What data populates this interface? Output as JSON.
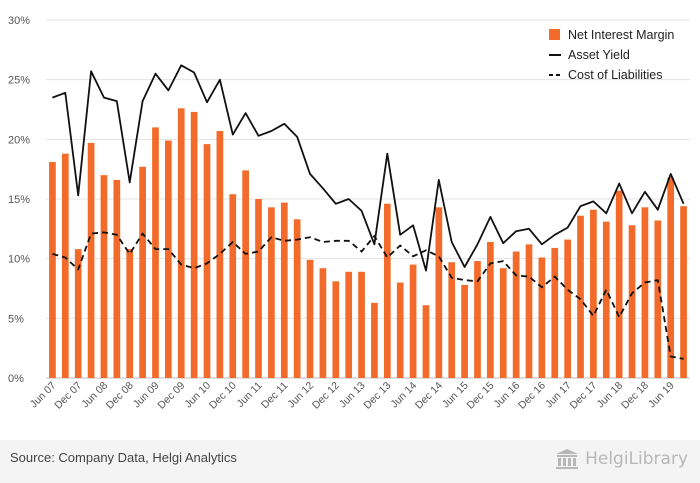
{
  "footer": {
    "source": "Source: Company Data, Helgi Analytics",
    "brand": "HelgiLibrary",
    "brand_icon": "library-columns-icon"
  },
  "colors": {
    "bar": "#f26b2a",
    "line": "#111111",
    "grid": "#e3e3e3"
  },
  "chart_data": {
    "type": "bar",
    "title": "",
    "xlabel": "",
    "ylabel": "",
    "ylim": [
      0,
      30
    ],
    "yticks": [
      "0%",
      "5%",
      "10%",
      "15%",
      "20%",
      "25%",
      "30%"
    ],
    "grid": true,
    "legend_position": "top-right",
    "categories": [
      "Jun 07",
      "Sep 07",
      "Dec 07",
      "Mar 08",
      "Jun 08",
      "Sep 08",
      "Dec 08",
      "Mar 09",
      "Jun 09",
      "Sep 09",
      "Dec 09",
      "Mar 10",
      "Jun 10",
      "Sep 10",
      "Dec 10",
      "Mar 11",
      "Jun 11",
      "Sep 11",
      "Dec 11",
      "Mar 12",
      "Jun 12",
      "Sep 12",
      "Dec 12",
      "Mar 13",
      "Jun 13",
      "Sep 13",
      "Dec 13",
      "Mar 14",
      "Jun 14",
      "Sep 14",
      "Dec 14",
      "Mar 15",
      "Jun 15",
      "Sep 15",
      "Dec 15",
      "Mar 16",
      "Jun 16",
      "Sep 16",
      "Dec 16",
      "Mar 17",
      "Jun 17",
      "Sep 17",
      "Dec 17",
      "Mar 18",
      "Jun 18",
      "Sep 18",
      "Dec 18",
      "Mar 19",
      "Jun 19",
      "Sep 19"
    ],
    "x_tick_labels": [
      "Jun 07",
      "Dec 07",
      "Jun 08",
      "Dec 08",
      "Jun 09",
      "Dec 09",
      "Jun 10",
      "Dec 10",
      "Jun 11",
      "Dec 11",
      "Jun 12",
      "Dec 12",
      "Jun 13",
      "Dec 13",
      "Jun 14",
      "Dec 14",
      "Jun 15",
      "Dec 15",
      "Jun 16",
      "Dec 16",
      "Jun 17",
      "Dec 17",
      "Jun 18",
      "Dec 18",
      "Jun 19"
    ],
    "series": [
      {
        "name": "Net Interest Margin",
        "type": "bar",
        "values": [
          18.1,
          18.8,
          10.8,
          19.7,
          17.0,
          16.6,
          10.8,
          17.7,
          21.0,
          19.9,
          22.6,
          22.3,
          19.6,
          20.7,
          15.4,
          17.4,
          15.0,
          14.3,
          14.7,
          13.3,
          9.9,
          9.2,
          8.1,
          8.9,
          8.9,
          6.3,
          14.6,
          8.0,
          9.5,
          6.1,
          14.3,
          9.7,
          7.8,
          9.8,
          11.4,
          9.2,
          10.6,
          11.2,
          10.1,
          10.9,
          11.6,
          13.6,
          14.1,
          13.1,
          15.7,
          12.8,
          14.3,
          13.2,
          16.8,
          14.4
        ]
      },
      {
        "name": "Asset Yield",
        "type": "line",
        "values": [
          23.5,
          23.9,
          15.3,
          25.7,
          23.5,
          23.2,
          16.4,
          23.2,
          25.5,
          24.1,
          26.2,
          25.6,
          23.1,
          25.0,
          20.4,
          22.2,
          20.3,
          20.7,
          21.3,
          20.2,
          17.1,
          15.9,
          14.6,
          15.0,
          14.0,
          11.2,
          18.8,
          12.0,
          12.8,
          9.0,
          16.6,
          11.4,
          9.3,
          11.2,
          13.5,
          11.3,
          12.3,
          12.5,
          11.2,
          12.0,
          12.6,
          14.4,
          14.8,
          13.8,
          16.3,
          13.8,
          15.6,
          14.1,
          17.1,
          14.6
        ]
      },
      {
        "name": "Cost of Liabilities",
        "type": "line",
        "dash": "dashed",
        "values": [
          10.4,
          10.1,
          9.1,
          12.1,
          12.2,
          12.0,
          10.4,
          12.1,
          10.8,
          10.8,
          9.5,
          9.2,
          9.6,
          10.4,
          11.4,
          10.4,
          10.6,
          11.8,
          11.5,
          11.6,
          11.8,
          11.4,
          11.5,
          11.5,
          10.6,
          11.9,
          10.1,
          11.1,
          10.2,
          10.7,
          10.2,
          8.4,
          8.2,
          8.1,
          9.6,
          9.8,
          8.6,
          8.5,
          7.6,
          8.5,
          7.4,
          6.6,
          5.2,
          7.4,
          5.1,
          7.1,
          8.0,
          8.2,
          1.8,
          1.6
        ]
      }
    ]
  }
}
